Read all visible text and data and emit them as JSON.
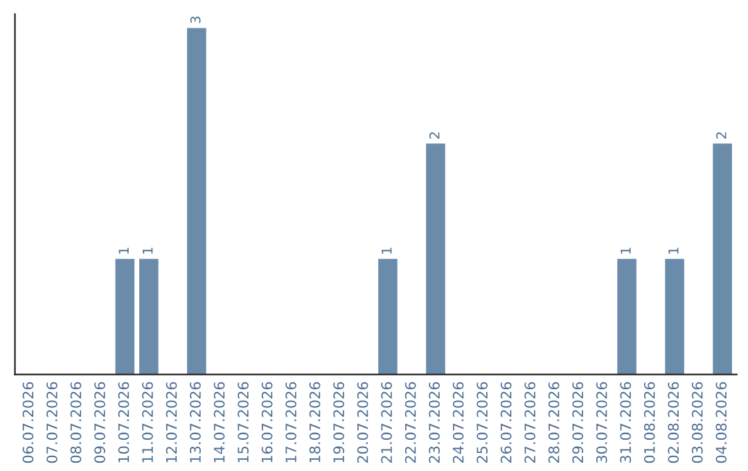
{
  "chart_data": {
    "type": "bar",
    "categories": [
      "06.07.2026",
      "07.07.2026",
      "08.07.2026",
      "09.07.2026",
      "10.07.2026",
      "11.07.2026",
      "12.07.2026",
      "13.07.2026",
      "14.07.2026",
      "15.07.2026",
      "16.07.2026",
      "17.07.2026",
      "18.07.2026",
      "19.07.2026",
      "20.07.2026",
      "21.07.2026",
      "22.07.2026",
      "23.07.2026",
      "24.07.2026",
      "25.07.2026",
      "26.07.2026",
      "27.07.2026",
      "28.07.2026",
      "29.07.2026",
      "30.07.2026",
      "31.07.2026",
      "01.08.2026",
      "02.08.2026",
      "03.08.2026",
      "04.08.2026"
    ],
    "values": [
      0,
      0,
      0,
      0,
      1,
      1,
      0,
      3,
      0,
      0,
      0,
      0,
      0,
      0,
      0,
      1,
      0,
      2,
      0,
      0,
      0,
      0,
      0,
      0,
      0,
      1,
      0,
      1,
      0,
      2
    ],
    "value_labels": [
      null,
      null,
      null,
      null,
      "1",
      "1",
      null,
      "3",
      null,
      null,
      null,
      null,
      null,
      null,
      null,
      "1",
      null,
      "2",
      null,
      null,
      null,
      null,
      null,
      null,
      null,
      "1",
      null,
      "1",
      null,
      "2"
    ],
    "color": "#6b8bab",
    "tick_labels": "x",
    "grid": false,
    "legend": false
  }
}
